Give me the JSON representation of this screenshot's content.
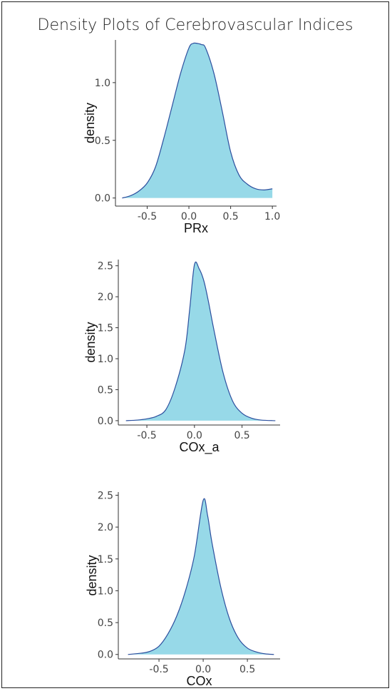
{
  "title": "Density Plots of Cerebrovascular Indices",
  "colors": {
    "fill": "#97d9e8",
    "line": "#2c4f9e",
    "axis": "#333333"
  },
  "chart_data": [
    {
      "type": "area",
      "xlabel": "PRx",
      "ylabel": "density",
      "xlim": [
        -0.88,
        1.05
      ],
      "ylim": [
        -0.07,
        1.37
      ],
      "xticks": [
        -0.5,
        0.0,
        0.5,
        1.0
      ],
      "xtick_labels": [
        "-0.5",
        "0.0",
        "0.5",
        "1.0"
      ],
      "yticks": [
        0.0,
        0.5,
        1.0
      ],
      "ytick_labels": [
        "0.0",
        "0.5",
        "1.0"
      ],
      "grid": false,
      "x": [
        -0.8,
        -0.7,
        -0.6,
        -0.5,
        -0.4,
        -0.3,
        -0.2,
        -0.1,
        0.0,
        0.05,
        0.1,
        0.15,
        0.2,
        0.3,
        0.4,
        0.5,
        0.6,
        0.7,
        0.8,
        0.9,
        1.0
      ],
      "y": [
        0.0,
        0.02,
        0.06,
        0.13,
        0.27,
        0.52,
        0.8,
        1.08,
        1.3,
        1.34,
        1.34,
        1.33,
        1.3,
        1.08,
        0.75,
        0.4,
        0.2,
        0.12,
        0.08,
        0.07,
        0.08
      ]
    },
    {
      "type": "area",
      "xlabel": "COx_a",
      "ylabel": "density",
      "xlim": [
        -0.8,
        0.9
      ],
      "ylim": [
        -0.07,
        2.6
      ],
      "xticks": [
        -0.5,
        0.0,
        0.5
      ],
      "xtick_labels": [
        "-0.5",
        "0.0",
        "0.5"
      ],
      "yticks": [
        0.0,
        0.5,
        1.0,
        1.5,
        2.0,
        2.5
      ],
      "ytick_labels": [
        "0.0",
        "0.5",
        "1.0",
        "1.5",
        "2.0",
        "2.5"
      ],
      "grid": false,
      "x": [
        -0.72,
        -0.6,
        -0.5,
        -0.4,
        -0.3,
        -0.2,
        -0.1,
        -0.05,
        0.0,
        0.05,
        0.1,
        0.15,
        0.2,
        0.3,
        0.4,
        0.5,
        0.6,
        0.7,
        0.85
      ],
      "y": [
        0.0,
        0.01,
        0.03,
        0.07,
        0.18,
        0.55,
        1.15,
        1.8,
        2.52,
        2.45,
        2.25,
        1.9,
        1.5,
        0.78,
        0.32,
        0.12,
        0.04,
        0.01,
        0.0
      ]
    },
    {
      "type": "area",
      "xlabel": "COx",
      "ylabel": "density",
      "xlim": [
        -0.96,
        0.87
      ],
      "ylim": [
        -0.07,
        2.55
      ],
      "xticks": [
        -0.5,
        0.0,
        0.5
      ],
      "xtick_labels": [
        "-0.5",
        "0.0",
        "0.5"
      ],
      "yticks": [
        0.0,
        0.5,
        1.0,
        1.5,
        2.0,
        2.5
      ],
      "ytick_labels": [
        "0.0",
        "0.5",
        "1.0",
        "1.5",
        "2.0",
        "2.5"
      ],
      "grid": false,
      "x": [
        -0.85,
        -0.7,
        -0.6,
        -0.5,
        -0.4,
        -0.3,
        -0.2,
        -0.1,
        0.0,
        0.05,
        0.1,
        0.2,
        0.3,
        0.4,
        0.5,
        0.6,
        0.7,
        0.8
      ],
      "y": [
        0.0,
        0.02,
        0.05,
        0.13,
        0.32,
        0.6,
        1.0,
        1.55,
        2.42,
        2.18,
        1.75,
        1.05,
        0.55,
        0.25,
        0.1,
        0.04,
        0.01,
        0.0
      ]
    }
  ]
}
